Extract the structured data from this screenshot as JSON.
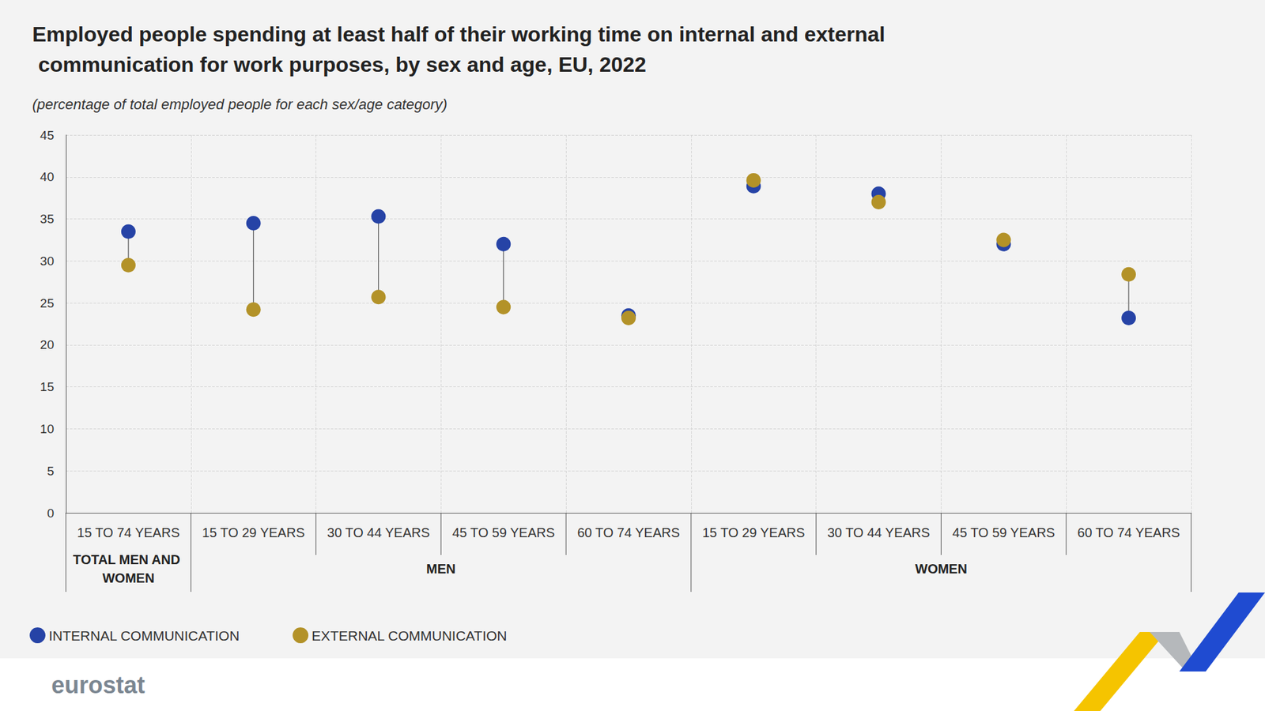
{
  "chart_data": {
    "type": "dumbbell",
    "title": "Employed people spending at least half of their working time on internal and external communication for work purposes, by sex and age, EU, 2022",
    "subtitle": "(percentage of total employed people for each sex/age category)",
    "categories": [
      "15 TO 74 YEARS",
      "15 TO 29 YEARS",
      "30 TO 44 YEARS",
      "45 TO 59 YEARS",
      "60 TO 74 YEARS",
      "15 TO 29 YEARS",
      "30 TO 44 YEARS",
      "45 TO 59 YEARS",
      "60 TO 74 YEARS"
    ],
    "category_groups": [
      "TOTAL MEN AND WOMEN",
      "MEN",
      "MEN",
      "MEN",
      "MEN",
      "WOMEN",
      "WOMEN",
      "WOMEN",
      "WOMEN"
    ],
    "series": [
      {
        "name": "INTERNAL COMMUNICATION",
        "color": "#2643a6",
        "values": [
          33.5,
          34.5,
          35.3,
          32.0,
          23.5,
          38.9,
          38.0,
          32.0,
          23.2
        ]
      },
      {
        "name": "EXTERNAL COMMUNICATION",
        "color": "#b39228",
        "values": [
          29.5,
          24.2,
          25.7,
          24.5,
          23.2,
          39.6,
          37.0,
          32.5,
          28.4
        ]
      }
    ],
    "ylim": [
      0,
      45
    ],
    "yticks": [
      0,
      5,
      10,
      15,
      20,
      25,
      30,
      35,
      40,
      45
    ],
    "grid": true,
    "legend": "bottom left",
    "marker": "circle",
    "source": "eurostat"
  }
}
